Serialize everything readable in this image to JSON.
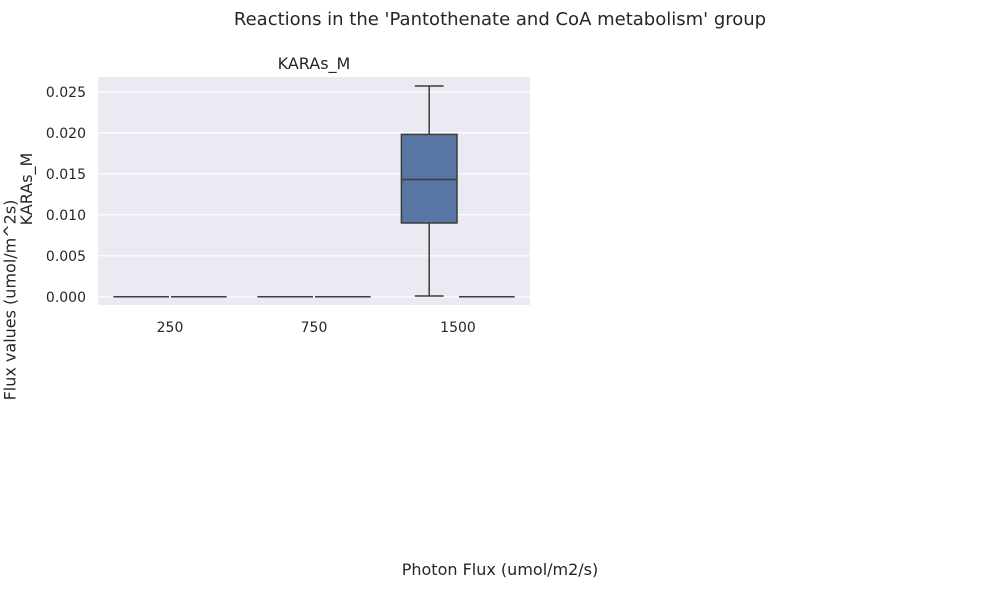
{
  "figure": {
    "suptitle": "Reactions in the 'Pantothenate and CoA metabolism' group",
    "xlabel": "Photon Flux (umol/m2/s)",
    "ylabel": "Flux values (umol/m^2s)"
  },
  "colors": {
    "axes_bg": "#eaeaf2",
    "grid": "#ffffff",
    "box_fill": "#5875a4",
    "line": "#3d3d3d"
  },
  "chart_data": {
    "type": "box",
    "title": "KARAs_M",
    "ylabel": "KARAs_M",
    "xlabel": "",
    "categories": [
      "250",
      "750",
      "1500"
    ],
    "ylim": [
      -0.001,
      0.0268
    ],
    "yticks": [
      "0.000",
      "0.005",
      "0.010",
      "0.015",
      "0.020",
      "0.025"
    ],
    "grid": true,
    "boxes": [
      {
        "category": "250",
        "group": 0,
        "min": 0.0,
        "q1": 0.0,
        "median": 0.0,
        "q3": 0.0,
        "max": 0.0
      },
      {
        "category": "250",
        "group": 1,
        "min": 0.0,
        "q1": 0.0,
        "median": 0.0,
        "q3": 0.0,
        "max": 0.0
      },
      {
        "category": "750",
        "group": 0,
        "min": 0.0,
        "q1": 0.0,
        "median": 0.0,
        "q3": 0.0,
        "max": 0.0
      },
      {
        "category": "750",
        "group": 1,
        "min": 0.0,
        "q1": 0.0,
        "median": 0.0,
        "q3": 0.0,
        "max": 0.0
      },
      {
        "category": "1500",
        "group": 0,
        "min": 0.0001,
        "q1": 0.009,
        "median": 0.0143,
        "q3": 0.0198,
        "max": 0.0257
      },
      {
        "category": "1500",
        "group": 1,
        "min": 0.0,
        "q1": 0.0,
        "median": 0.0,
        "q3": 0.0,
        "max": 0.0
      }
    ]
  }
}
